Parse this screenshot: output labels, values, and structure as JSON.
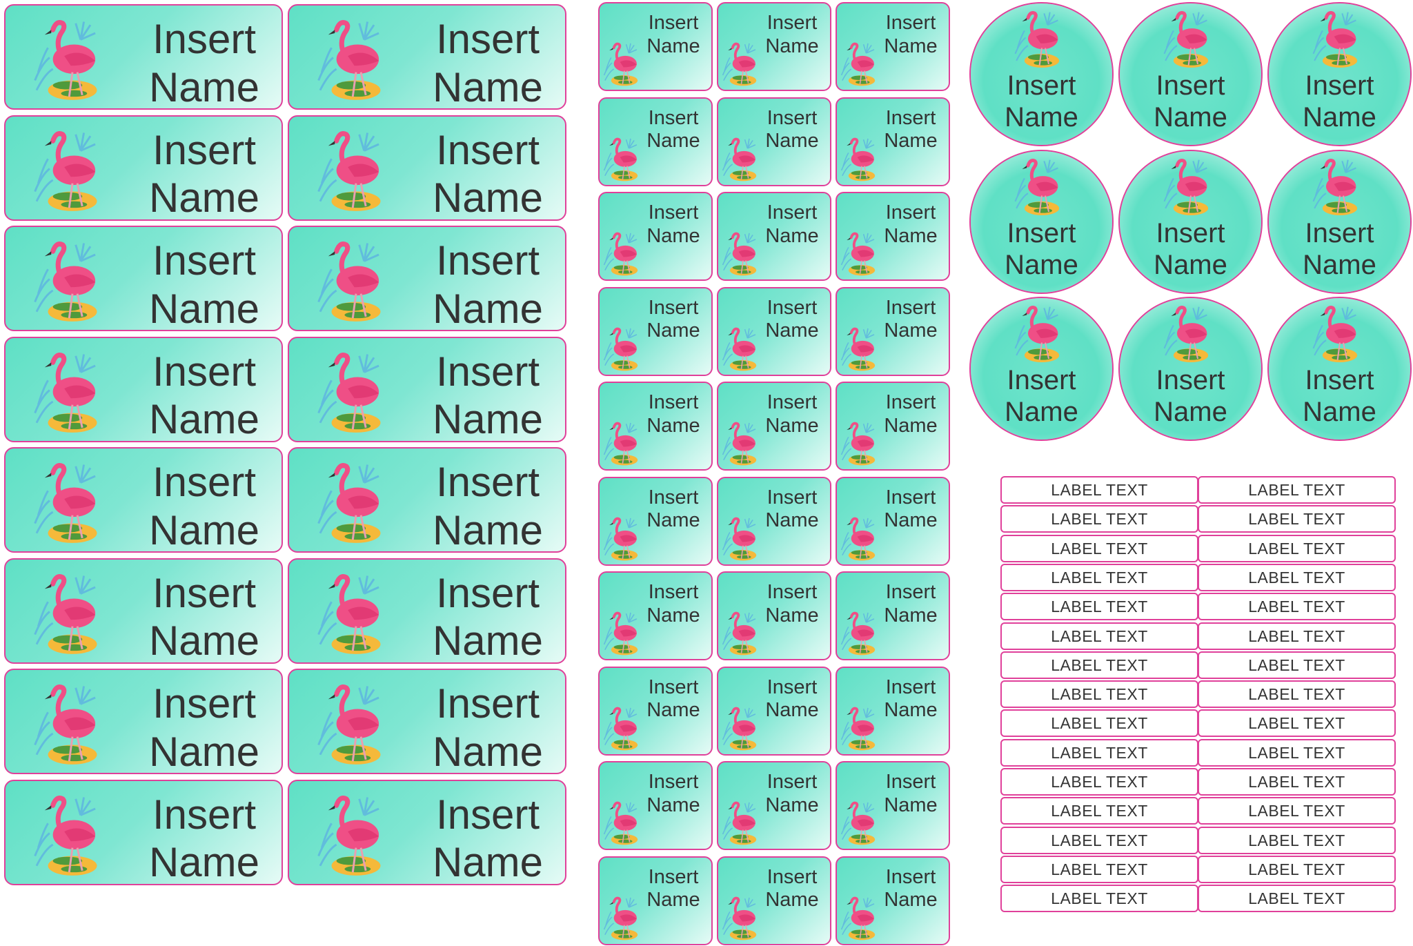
{
  "sheet": {
    "large_labels": [
      {
        "line1": "Insert",
        "line2": "Name"
      },
      {
        "line1": "Insert",
        "line2": "Name"
      },
      {
        "line1": "Insert",
        "line2": "Name"
      },
      {
        "line1": "Insert",
        "line2": "Name"
      },
      {
        "line1": "Insert",
        "line2": "Name"
      },
      {
        "line1": "Insert",
        "line2": "Name"
      },
      {
        "line1": "Insert",
        "line2": "Name"
      },
      {
        "line1": "Insert",
        "line2": "Name"
      },
      {
        "line1": "Insert",
        "line2": "Name"
      },
      {
        "line1": "Insert",
        "line2": "Name"
      },
      {
        "line1": "Insert",
        "line2": "Name"
      },
      {
        "line1": "Insert",
        "line2": "Name"
      },
      {
        "line1": "Insert",
        "line2": "Name"
      },
      {
        "line1": "Insert",
        "line2": "Name"
      },
      {
        "line1": "Insert",
        "line2": "Name"
      },
      {
        "line1": "Insert",
        "line2": "Name"
      }
    ],
    "small_labels": [
      {
        "line1": "Insert",
        "line2": "Name"
      },
      {
        "line1": "Insert",
        "line2": "Name"
      },
      {
        "line1": "Insert",
        "line2": "Name"
      },
      {
        "line1": "Insert",
        "line2": "Name"
      },
      {
        "line1": "Insert",
        "line2": "Name"
      },
      {
        "line1": "Insert",
        "line2": "Name"
      },
      {
        "line1": "Insert",
        "line2": "Name"
      },
      {
        "line1": "Insert",
        "line2": "Name"
      },
      {
        "line1": "Insert",
        "line2": "Name"
      },
      {
        "line1": "Insert",
        "line2": "Name"
      },
      {
        "line1": "Insert",
        "line2": "Name"
      },
      {
        "line1": "Insert",
        "line2": "Name"
      },
      {
        "line1": "Insert",
        "line2": "Name"
      },
      {
        "line1": "Insert",
        "line2": "Name"
      },
      {
        "line1": "Insert",
        "line2": "Name"
      },
      {
        "line1": "Insert",
        "line2": "Name"
      },
      {
        "line1": "Insert",
        "line2": "Name"
      },
      {
        "line1": "Insert",
        "line2": "Name"
      },
      {
        "line1": "Insert",
        "line2": "Name"
      },
      {
        "line1": "Insert",
        "line2": "Name"
      },
      {
        "line1": "Insert",
        "line2": "Name"
      },
      {
        "line1": "Insert",
        "line2": "Name"
      },
      {
        "line1": "Insert",
        "line2": "Name"
      },
      {
        "line1": "Insert",
        "line2": "Name"
      },
      {
        "line1": "Insert",
        "line2": "Name"
      },
      {
        "line1": "Insert",
        "line2": "Name"
      },
      {
        "line1": "Insert",
        "line2": "Name"
      },
      {
        "line1": "Insert",
        "line2": "Name"
      },
      {
        "line1": "Insert",
        "line2": "Name"
      },
      {
        "line1": "Insert",
        "line2": "Name"
      }
    ],
    "round_labels": [
      {
        "line1": "Insert",
        "line2": "Name"
      },
      {
        "line1": "Insert",
        "line2": "Name"
      },
      {
        "line1": "Insert",
        "line2": "Name"
      },
      {
        "line1": "Insert",
        "line2": "Name"
      },
      {
        "line1": "Insert",
        "line2": "Name"
      },
      {
        "line1": "Insert",
        "line2": "Name"
      },
      {
        "line1": "Insert",
        "line2": "Name"
      },
      {
        "line1": "Insert",
        "line2": "Name"
      },
      {
        "line1": "Insert",
        "line2": "Name"
      }
    ],
    "text_labels": [
      "LABEL TEXT",
      "LABEL TEXT",
      "LABEL TEXT",
      "LABEL TEXT",
      "LABEL TEXT",
      "LABEL TEXT",
      "LABEL TEXT",
      "LABEL TEXT",
      "LABEL TEXT",
      "LABEL TEXT",
      "LABEL TEXT",
      "LABEL TEXT",
      "LABEL TEXT",
      "LABEL TEXT",
      "LABEL TEXT",
      "LABEL TEXT",
      "LABEL TEXT",
      "LABEL TEXT",
      "LABEL TEXT",
      "LABEL TEXT",
      "LABEL TEXT",
      "LABEL TEXT",
      "LABEL TEXT",
      "LABEL TEXT",
      "LABEL TEXT",
      "LABEL TEXT",
      "LABEL TEXT",
      "LABEL TEXT",
      "LABEL TEXT",
      "LABEL TEXT"
    ],
    "art_icon": "flamingo-icon",
    "colors": {
      "label_bg": "#5fe0c5",
      "border": "#e0409a",
      "text": "#333333",
      "flamingo": "#ef4f86"
    }
  }
}
